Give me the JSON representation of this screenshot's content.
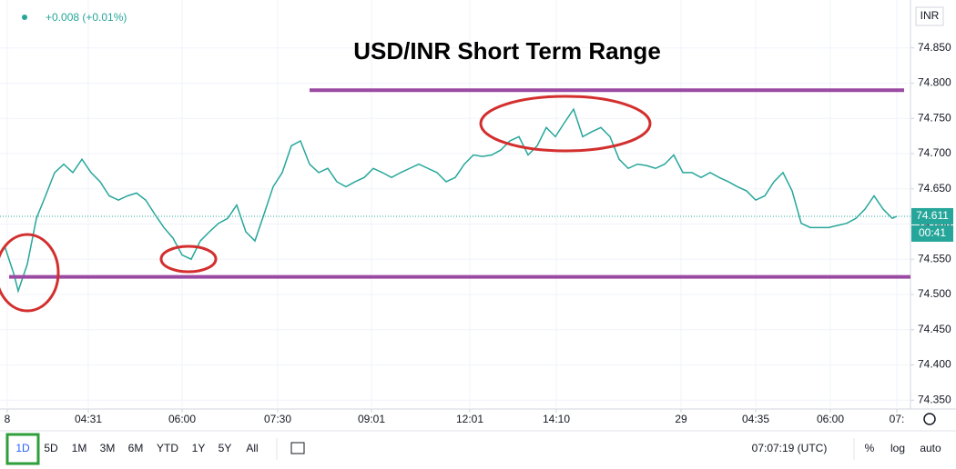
{
  "header": {
    "change": "+0.008 (+0.01%)",
    "currency": "INR"
  },
  "chart_data": {
    "type": "line",
    "title": "USD/INR Short Term Range",
    "x": [
      0.5,
      1.5,
      2,
      3,
      4,
      5,
      6,
      7,
      8,
      9,
      10,
      11,
      12,
      13,
      14,
      15,
      16,
      17,
      18,
      19,
      20,
      21,
      22,
      23,
      24,
      25,
      26,
      27,
      28,
      29,
      30,
      31,
      32,
      33,
      34,
      35,
      36,
      37,
      38,
      39,
      40,
      41,
      42,
      43,
      44,
      45,
      46,
      47,
      48,
      49,
      50,
      51,
      52,
      53,
      54,
      55,
      56,
      57,
      58,
      59,
      60,
      61,
      62,
      63,
      64,
      65,
      66,
      67,
      68,
      69,
      70,
      71,
      72,
      73,
      74,
      75,
      76,
      77,
      78,
      79,
      80,
      81,
      82,
      83,
      84,
      85,
      86,
      87,
      88,
      89,
      90,
      91,
      92,
      93,
      94,
      95,
      96,
      97,
      98,
      98.5
    ],
    "series": [
      {
        "name": "USD/INR",
        "color": "#26a69a",
        "values": [
          74.569,
          74.53,
          74.505,
          74.543,
          74.608,
          74.64,
          74.673,
          74.685,
          74.673,
          74.692,
          74.673,
          74.66,
          74.64,
          74.634,
          74.64,
          74.644,
          74.634,
          74.614,
          74.595,
          74.58,
          74.556,
          74.55,
          74.576,
          74.589,
          74.601,
          74.608,
          74.627,
          74.589,
          74.576,
          74.614,
          74.653,
          74.673,
          74.711,
          74.718,
          74.685,
          74.673,
          74.679,
          74.66,
          74.653,
          74.66,
          74.666,
          74.679,
          74.673,
          74.666,
          74.673,
          74.679,
          74.685,
          74.679,
          74.673,
          74.66,
          74.666,
          74.685,
          74.698,
          74.696,
          74.698,
          74.705,
          74.718,
          74.724,
          74.698,
          74.711,
          74.737,
          74.724,
          74.744,
          74.763,
          74.724,
          74.731,
          74.737,
          74.724,
          74.692,
          74.679,
          74.685,
          74.683,
          74.679,
          74.685,
          74.698,
          74.673,
          74.673,
          74.666,
          74.673,
          74.666,
          74.66,
          74.653,
          74.647,
          74.634,
          74.64,
          74.66,
          74.673,
          74.647,
          74.601,
          74.595,
          74.595,
          74.595,
          74.598,
          74.601,
          74.608,
          74.621,
          74.64,
          74.621,
          74.608,
          74.611
        ]
      }
    ],
    "hlines": [
      {
        "value": 74.79,
        "from": 34,
        "to": 99.3,
        "color": "#9b4aa3"
      },
      {
        "value": 74.525,
        "from": 1,
        "to": 100,
        "color": "#9b4aa3"
      }
    ],
    "last_price": 74.611,
    "countdown": "00:41",
    "xlim": [
      0,
      100
    ],
    "ylim": [
      74.34,
      74.918
    ],
    "xticks": [
      {
        "value": 0.8,
        "label": "8"
      },
      {
        "value": 9.7,
        "label": "04:31"
      },
      {
        "value": 20,
        "label": "06:00"
      },
      {
        "value": 30.5,
        "label": "07:30"
      },
      {
        "value": 40.8,
        "label": "09:01"
      },
      {
        "value": 51.6,
        "label": "12:01"
      },
      {
        "value": 61.1,
        "label": "14:10"
      },
      {
        "value": 74.8,
        "label": "29"
      },
      {
        "value": 83,
        "label": "04:35"
      },
      {
        "value": 91.2,
        "label": "06:00"
      },
      {
        "value": 98.5,
        "label": "07:"
      }
    ],
    "yticks": [
      {
        "value": 74.35,
        "label": "74.350"
      },
      {
        "value": 74.4,
        "label": "74.400"
      },
      {
        "value": 74.45,
        "label": "74.450"
      },
      {
        "value": 74.5,
        "label": "74.500"
      },
      {
        "value": 74.55,
        "label": "74.550"
      },
      {
        "value": 74.6,
        "label": "74.600"
      },
      {
        "value": 74.65,
        "label": "74.650"
      },
      {
        "value": 74.7,
        "label": "74.700"
      },
      {
        "value": 74.75,
        "label": "74.750"
      },
      {
        "value": 74.8,
        "label": "74.800"
      },
      {
        "value": 74.85,
        "label": "74.850"
      }
    ],
    "grid": true
  },
  "toolbar": {
    "ranges": [
      "1D",
      "5D",
      "1M",
      "3M",
      "6M",
      "YTD",
      "1Y",
      "5Y",
      "All"
    ],
    "time": "07:07:19 (UTC)",
    "options": [
      "%",
      "log",
      "auto"
    ]
  }
}
